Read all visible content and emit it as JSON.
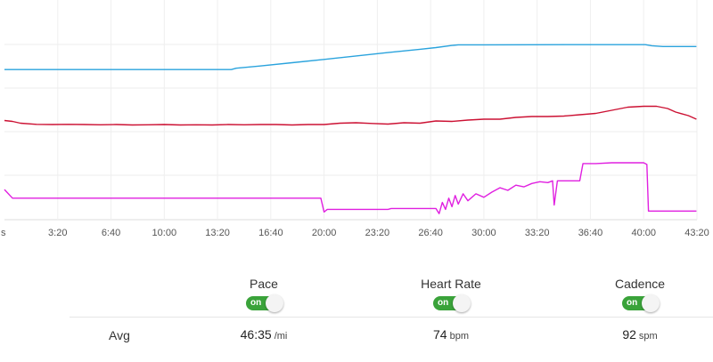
{
  "chart_data": {
    "type": "line",
    "x_axis": {
      "ticks": [
        "s",
        "3:20",
        "6:40",
        "10:00",
        "13:20",
        "16:40",
        "20:00",
        "23:20",
        "26:40",
        "30:00",
        "33:20",
        "36:40",
        "40:00",
        "43:20"
      ]
    },
    "grid": true,
    "series": [
      {
        "color": "#2aa3dd",
        "points": [
          [
            0,
            0.77
          ],
          [
            2,
            0.77
          ],
          [
            6,
            0.77
          ],
          [
            10,
            0.77
          ],
          [
            13.3,
            0.77
          ],
          [
            14.2,
            0.77
          ],
          [
            14.5,
            0.755
          ],
          [
            16,
            0.728
          ],
          [
            18,
            0.69
          ],
          [
            20,
            0.65
          ],
          [
            22,
            0.61
          ],
          [
            24,
            0.57
          ],
          [
            26,
            0.53
          ],
          [
            27,
            0.51
          ],
          [
            28,
            0.485
          ],
          [
            28.4,
            0.478
          ],
          [
            30,
            0.478
          ],
          [
            33,
            0.477
          ],
          [
            36,
            0.476
          ],
          [
            40.1,
            0.476
          ],
          [
            40.5,
            0.488
          ],
          [
            41.2,
            0.498
          ],
          [
            43.3,
            0.498
          ]
        ]
      },
      {
        "color": "#cc1133",
        "points": [
          [
            0,
            0.71
          ],
          [
            0.5,
            0.73
          ],
          [
            1,
            0.77
          ],
          [
            2,
            0.795
          ],
          [
            3,
            0.8
          ],
          [
            4,
            0.795
          ],
          [
            5,
            0.8
          ],
          [
            6,
            0.805
          ],
          [
            7,
            0.8
          ],
          [
            8,
            0.81
          ],
          [
            9,
            0.805
          ],
          [
            10,
            0.8
          ],
          [
            11,
            0.81
          ],
          [
            12,
            0.805
          ],
          [
            13,
            0.81
          ],
          [
            14,
            0.8
          ],
          [
            15,
            0.805
          ],
          [
            16,
            0.8
          ],
          [
            17,
            0.8
          ],
          [
            18,
            0.81
          ],
          [
            19,
            0.8
          ],
          [
            20,
            0.8
          ],
          [
            21,
            0.77
          ],
          [
            22,
            0.76
          ],
          [
            23,
            0.775
          ],
          [
            24,
            0.79
          ],
          [
            25,
            0.76
          ],
          [
            26,
            0.77
          ],
          [
            27,
            0.72
          ],
          [
            28,
            0.73
          ],
          [
            29,
            0.7
          ],
          [
            30,
            0.68
          ],
          [
            31,
            0.68
          ],
          [
            32,
            0.64
          ],
          [
            33,
            0.62
          ],
          [
            34,
            0.62
          ],
          [
            35,
            0.61
          ],
          [
            36,
            0.58
          ],
          [
            37,
            0.55
          ],
          [
            38,
            0.48
          ],
          [
            39,
            0.41
          ],
          [
            40,
            0.39
          ],
          [
            40.8,
            0.39
          ],
          [
            41.5,
            0.44
          ],
          [
            42,
            0.52
          ],
          [
            42.8,
            0.6
          ],
          [
            43.3,
            0.68
          ]
        ]
      },
      {
        "color": "#e020e0",
        "points": [
          [
            0,
            0.65
          ],
          [
            0.5,
            0.75
          ],
          [
            1,
            0.75
          ],
          [
            5,
            0.75
          ],
          [
            10,
            0.75
          ],
          [
            15,
            0.75
          ],
          [
            19.8,
            0.75
          ],
          [
            20,
            0.91
          ],
          [
            20.2,
            0.88
          ],
          [
            21,
            0.88
          ],
          [
            22,
            0.88
          ],
          [
            24,
            0.88
          ],
          [
            24.2,
            0.87
          ],
          [
            26,
            0.87
          ],
          [
            27,
            0.87
          ],
          [
            27.2,
            0.93
          ],
          [
            27.4,
            0.8
          ],
          [
            27.6,
            0.88
          ],
          [
            27.8,
            0.75
          ],
          [
            28,
            0.85
          ],
          [
            28.2,
            0.72
          ],
          [
            28.4,
            0.82
          ],
          [
            28.7,
            0.7
          ],
          [
            29,
            0.78
          ],
          [
            29.5,
            0.7
          ],
          [
            30,
            0.74
          ],
          [
            30.5,
            0.68
          ],
          [
            31,
            0.63
          ],
          [
            31.5,
            0.66
          ],
          [
            32,
            0.6
          ],
          [
            32.5,
            0.62
          ],
          [
            33,
            0.58
          ],
          [
            33.5,
            0.56
          ],
          [
            34,
            0.57
          ],
          [
            34.3,
            0.55
          ],
          [
            34.4,
            0.83
          ],
          [
            34.6,
            0.55
          ],
          [
            35,
            0.55
          ],
          [
            35.5,
            0.55
          ],
          [
            36,
            0.55
          ],
          [
            36.2,
            0.35
          ],
          [
            37,
            0.35
          ],
          [
            38,
            0.34
          ],
          [
            39,
            0.34
          ],
          [
            40,
            0.34
          ],
          [
            40.2,
            0.36
          ],
          [
            40.3,
            0.9
          ],
          [
            41,
            0.9
          ],
          [
            42,
            0.9
          ],
          [
            43.3,
            0.9
          ]
        ]
      }
    ]
  },
  "metrics": [
    {
      "title": "Pace",
      "toggle": "on",
      "avg_value": "46:35",
      "avg_unit": "/mi"
    },
    {
      "title": "Heart Rate",
      "toggle": "on",
      "avg_value": "74",
      "avg_unit": "bpm"
    },
    {
      "title": "Cadence",
      "toggle": "on",
      "avg_value": "92",
      "avg_unit": "spm"
    }
  ],
  "row_label": "Avg"
}
